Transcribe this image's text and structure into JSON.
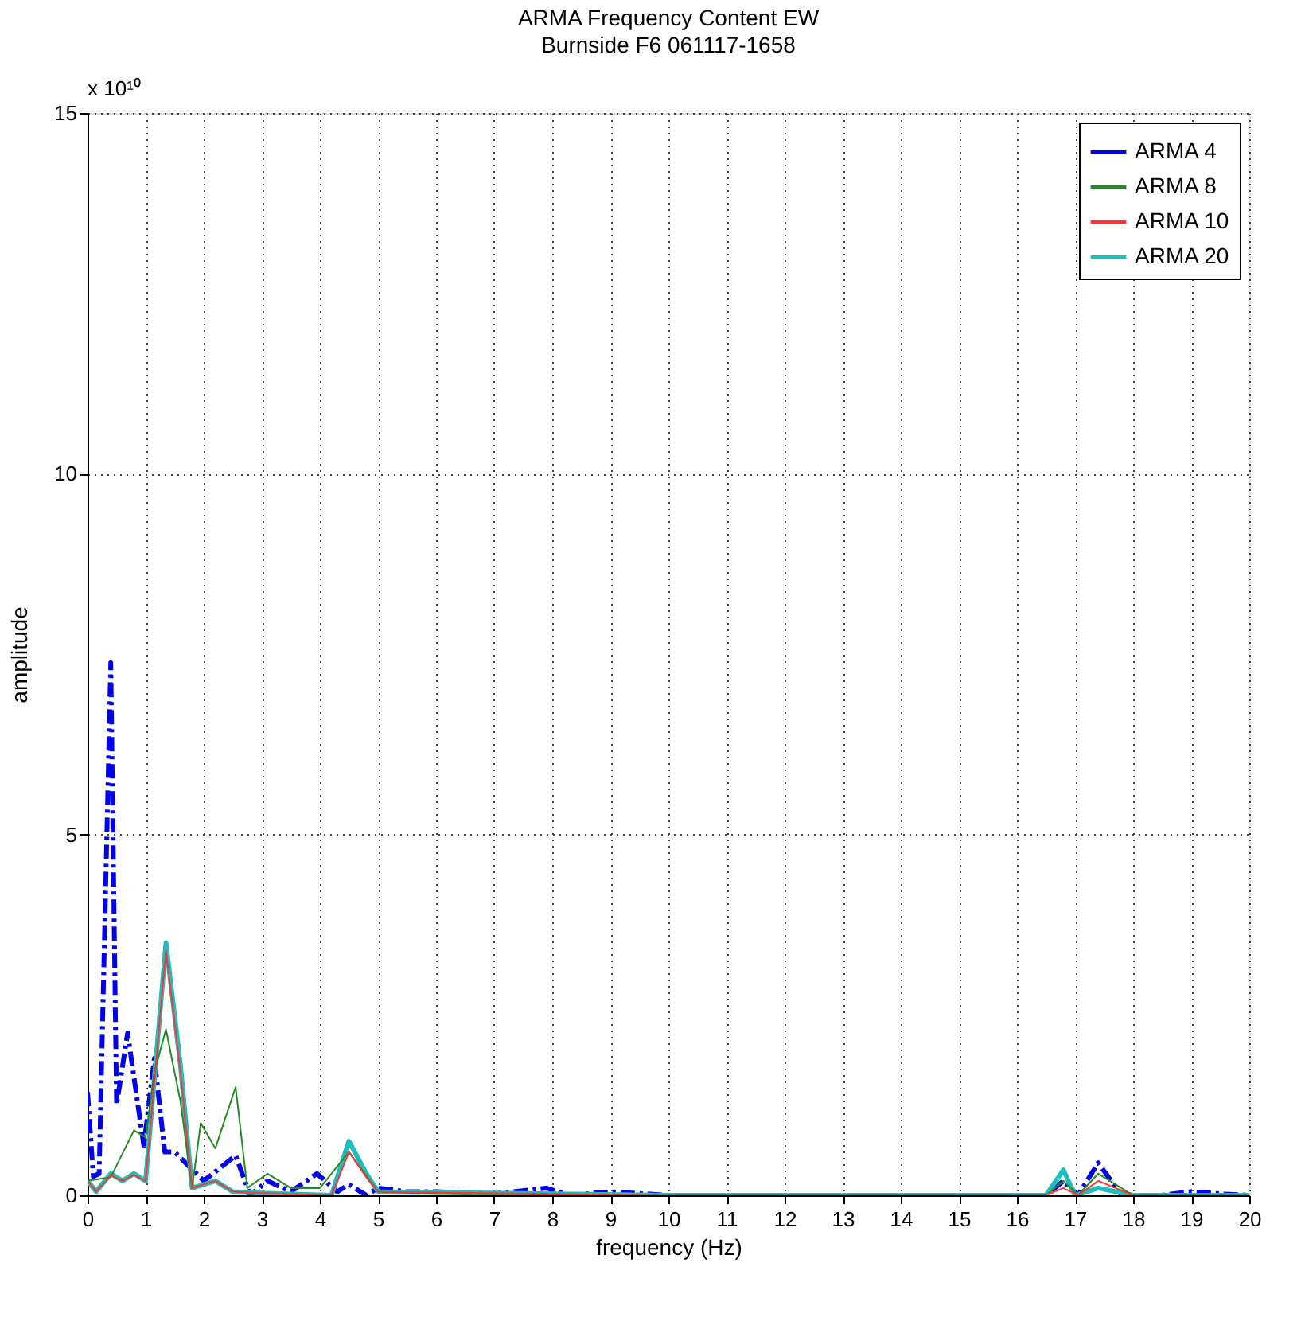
{
  "chart_data": {
    "type": "line",
    "title": "ARMA Frequency Content EW",
    "subtitle": "Burnside F6 061117-1658",
    "xlabel": "frequency (Hz)",
    "ylabel": "amplitude",
    "annotations": [
      "x 10¹⁰"
    ],
    "xlim": [
      0,
      20
    ],
    "ylim": [
      0,
      15
    ],
    "xticks": [
      0,
      1,
      2,
      3,
      4,
      5,
      6,
      7,
      8,
      9,
      10,
      11,
      12,
      13,
      14,
      15,
      16,
      17,
      18,
      19,
      20
    ],
    "yticks": [
      0,
      5,
      10,
      15
    ],
    "grid": true,
    "legend": "top right",
    "marker": "none",
    "series": [
      {
        "name": "ARMA 4",
        "color": "#0000ee",
        "line_style": "dashed",
        "x": [
          0,
          0.1,
          0.2,
          0.4,
          0.5,
          0.69,
          0.97,
          1.15,
          1.33,
          1.5,
          2.0,
          2.55,
          2.8,
          3.1,
          3.5,
          3.95,
          4.3,
          4.5,
          4.8,
          5.0,
          5.5,
          6.0,
          7.0,
          7.9,
          8.3,
          9.0,
          10.0,
          16.5,
          16.8,
          17.05,
          17.4,
          17.8,
          18.5,
          19.0,
          19.5,
          20
        ],
        "values": [
          1.43,
          0.26,
          0.3,
          7.38,
          1.25,
          2.25,
          0.68,
          1.9,
          0.6,
          0.6,
          0.2,
          0.55,
          0.0,
          0.2,
          0.05,
          0.3,
          0.05,
          0.15,
          0.0,
          0.1,
          0.05,
          0.05,
          0.02,
          0.1,
          0.0,
          0.05,
          0.0,
          0.0,
          0.2,
          0.0,
          0.45,
          0.0,
          0.0,
          0.05,
          0.02,
          0.0
        ]
      },
      {
        "name": "ARMA 8",
        "color": "#238b23",
        "line_style": "solid",
        "x": [
          0,
          0.4,
          0.8,
          1.0,
          1.15,
          1.35,
          1.6,
          1.8,
          1.95,
          2.2,
          2.55,
          2.75,
          3.1,
          3.5,
          4.0,
          4.5,
          5.0,
          6.0,
          10.0,
          16.5,
          16.8,
          17.05,
          17.4,
          18.0,
          20
        ],
        "values": [
          0.2,
          0.25,
          0.9,
          0.8,
          1.7,
          2.3,
          1.3,
          0.1,
          1.0,
          0.65,
          1.5,
          0.1,
          0.3,
          0.1,
          0.1,
          0.6,
          0.05,
          0.02,
          0.0,
          0.0,
          0.2,
          0.0,
          0.3,
          0.0,
          0.0
        ]
      },
      {
        "name": "ARMA 10",
        "color": "#ff3333",
        "line_style": "solid",
        "x": [
          0,
          0.15,
          0.4,
          0.6,
          0.8,
          1.0,
          1.35,
          1.6,
          1.8,
          2.2,
          2.5,
          3.0,
          4.2,
          4.5,
          4.8,
          5.0,
          10.0,
          16.5,
          16.8,
          17.05,
          17.4,
          18.0,
          20
        ],
        "values": [
          0.2,
          0.05,
          0.28,
          0.2,
          0.28,
          0.2,
          3.4,
          1.7,
          0.1,
          0.2,
          0.05,
          0.03,
          0.0,
          0.6,
          0.25,
          0.05,
          0.0,
          0.0,
          0.1,
          0.0,
          0.2,
          0.0,
          0.0
        ]
      },
      {
        "name": "ARMA 20",
        "color": "#1ebebe",
        "line_style": "solid",
        "x": [
          0,
          0.15,
          0.4,
          0.6,
          0.8,
          1.0,
          1.35,
          1.6,
          1.8,
          2.2,
          2.5,
          3.0,
          4.2,
          4.5,
          4.8,
          5.0,
          10.0,
          16.5,
          16.8,
          17.0,
          17.4,
          18.0,
          20
        ],
        "values": [
          0.2,
          0.05,
          0.3,
          0.2,
          0.3,
          0.2,
          3.5,
          1.8,
          0.1,
          0.2,
          0.05,
          0.03,
          0.0,
          0.75,
          0.3,
          0.05,
          0.0,
          0.0,
          0.35,
          0.0,
          0.1,
          0.0,
          0.0
        ]
      }
    ]
  }
}
